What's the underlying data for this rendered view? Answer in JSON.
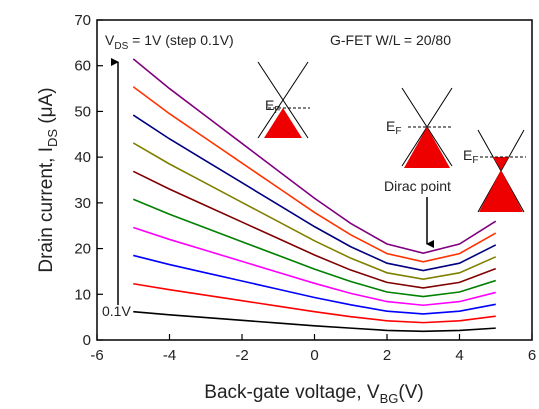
{
  "chart_data": {
    "type": "line",
    "x": [
      -5,
      -4,
      -3,
      -2,
      -1,
      0,
      1,
      2,
      3,
      4,
      5
    ],
    "xlim": [
      -6,
      6
    ],
    "xticks": [
      -6,
      -4,
      -2,
      0,
      2,
      4,
      6
    ],
    "ylim": [
      0,
      70
    ],
    "yticks": [
      0,
      10,
      20,
      30,
      40,
      50,
      60,
      70
    ],
    "x_label": [
      "Back-gate voltage, V",
      "BG",
      "(V)"
    ],
    "y_label": [
      "Drain current, I",
      "DS",
      " (μA)"
    ],
    "annotations": {
      "vds": [
        "V",
        "DS",
        " = 1V (step 0.1V)"
      ],
      "device": "G-FET W/L = 20/80",
      "dirac": "Dirac point",
      "start": "0.1V",
      "fermi": [
        "E",
        "F"
      ]
    },
    "series": [
      {
        "color": "#000000",
        "values": [
          6.2,
          5.5,
          4.9,
          4.3,
          3.7,
          3.1,
          2.6,
          2.1,
          1.9,
          2.1,
          2.6
        ]
      },
      {
        "color": "#ff0000",
        "values": [
          12.3,
          11,
          9.8,
          8.6,
          7.4,
          6.2,
          5.1,
          4.2,
          3.8,
          4.2,
          5.2
        ]
      },
      {
        "color": "#0000ff",
        "values": [
          18.5,
          16.5,
          14.7,
          12.9,
          11.1,
          9.3,
          7.7,
          6.3,
          5.7,
          6.3,
          7.8
        ]
      },
      {
        "color": "#ff00ff",
        "values": [
          24.6,
          22,
          19.6,
          17.2,
          14.8,
          12.4,
          10.2,
          8.4,
          7.6,
          8.4,
          10.4
        ]
      },
      {
        "color": "#008000",
        "values": [
          30.8,
          27.5,
          24.5,
          21.5,
          18.5,
          15.5,
          12.8,
          10.5,
          9.5,
          10.5,
          13
        ]
      },
      {
        "color": "#800000",
        "values": [
          36.9,
          33,
          29.4,
          25.8,
          22.2,
          18.6,
          15.3,
          12.6,
          11.4,
          12.6,
          15.6
        ]
      },
      {
        "color": "#808000",
        "values": [
          43.1,
          38.5,
          34.3,
          30.1,
          25.9,
          21.7,
          17.9,
          14.7,
          13.3,
          14.7,
          18.2
        ]
      },
      {
        "color": "#000080",
        "values": [
          49.2,
          44,
          39.2,
          34.4,
          29.6,
          24.8,
          20.4,
          16.8,
          15.2,
          16.8,
          20.8
        ]
      },
      {
        "color": "#ff3300",
        "values": [
          55.4,
          49.5,
          44.1,
          38.7,
          33.3,
          27.9,
          23,
          18.9,
          17.1,
          18.9,
          23.4
        ]
      },
      {
        "color": "#800080",
        "values": [
          61.5,
          55,
          49,
          43,
          37,
          31,
          25.5,
          21,
          19,
          21,
          26
        ]
      }
    ]
  }
}
